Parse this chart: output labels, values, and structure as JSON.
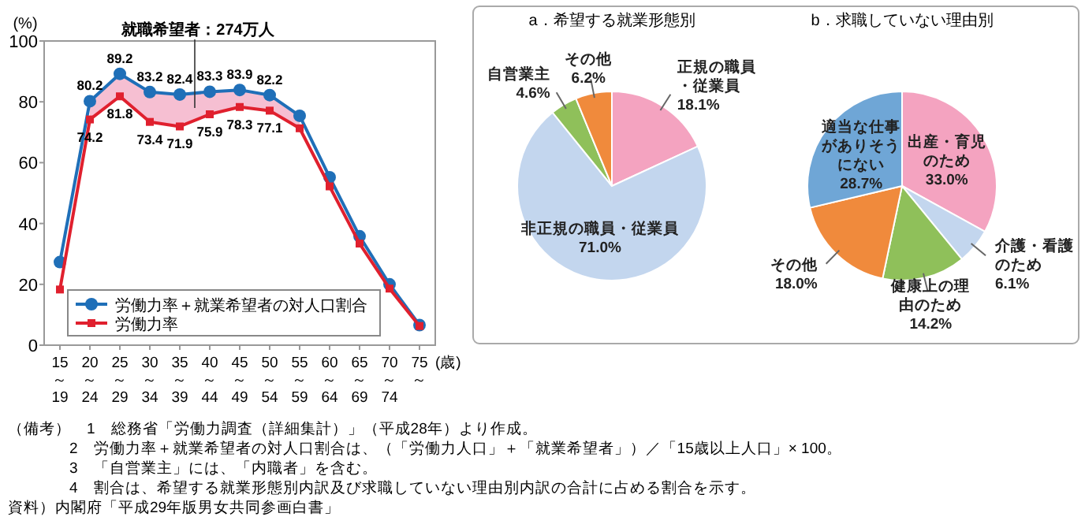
{
  "chart_data": [
    {
      "type": "line",
      "ylabel": "(%)",
      "xlabel": "(歳)",
      "categories": [
        "15～19",
        "20～24",
        "25～29",
        "30～34",
        "35～39",
        "40～44",
        "45～49",
        "50～54",
        "55～59",
        "60～64",
        "65～69",
        "70～74",
        "75～"
      ],
      "ylim": [
        0,
        100
      ],
      "yticks": [
        0,
        20,
        40,
        60,
        80,
        100
      ],
      "grid": false,
      "legend": "bottom left",
      "series": [
        {
          "name": "労働力率＋就業希望者の対人口割合",
          "color": "#1f6fb8",
          "marker": "circle",
          "values": [
            27.3,
            80.2,
            89.2,
            83.2,
            82.4,
            83.3,
            83.9,
            82.2,
            75.4,
            55.2,
            35.8,
            20.0,
            6.6
          ],
          "value_labels": [
            null,
            "80.2",
            "89.2",
            "83.2",
            "82.4",
            "83.3",
            "83.9",
            "82.2",
            null,
            null,
            null,
            null,
            null
          ],
          "lower": [
            null,
            74.2,
            81.8,
            73.4,
            71.9,
            75.9,
            78.3,
            77.1,
            71.3,
            null,
            null,
            null,
            null
          ],
          "upper": [
            null,
            80.2,
            89.2,
            83.2,
            82.4,
            83.3,
            83.9,
            82.2,
            75.4,
            null,
            null,
            null,
            null
          ]
        },
        {
          "name": "労働力率",
          "color": "#e0202e",
          "marker": "square",
          "values": [
            18.3,
            74.2,
            81.8,
            73.4,
            71.9,
            75.9,
            78.3,
            77.1,
            71.3,
            52.2,
            33.4,
            18.6,
            6.3
          ],
          "value_labels": [
            null,
            "74.2",
            "81.8",
            "73.4",
            "71.9",
            "75.9",
            "78.3",
            "77.1",
            null,
            null,
            null,
            null,
            null
          ]
        }
      ],
      "annotations": [
        "就職希望者：274万人",
        "（備考）　1　総務省「労働力調査（詳細集計）」（平成28年）より作成。",
        "2　労働力率＋就業希望者の対人口割合は、（「労働力人口」＋「就業希望者」）／「15歳以上人口」× 100。",
        "3　「自営業主」には、「内職者」を含む。",
        "4　割合は、希望する就業形態別内訳及び求職していない理由別内訳の合計に占める割合を示す。",
        "資料）内閣府「平成29年版男女共同参画白書」"
      ]
    },
    {
      "type": "pie",
      "title": "a．希望する就業形態別",
      "categories": [
        "正規の職員・従業員",
        "非正規の職員・従業員",
        "自営業主",
        "その他"
      ],
      "values": [
        18.1,
        71.0,
        4.6,
        6.2
      ],
      "value_labels": [
        "18.1%",
        "71.0%",
        "4.6%",
        "6.2%"
      ],
      "colors": [
        "#f4a3c0",
        "#c3d6ee",
        "#8fc05a",
        "#f08a3c"
      ]
    },
    {
      "type": "pie",
      "title": "b．求職していない理由別",
      "categories": [
        "出産・育児のため",
        "介護・看護のため",
        "健康上の理由のため",
        "その他",
        "適当な仕事がありそうにない"
      ],
      "values": [
        33.0,
        6.1,
        14.2,
        18.0,
        28.7
      ],
      "value_labels": [
        "33.0%",
        "6.1%",
        "14.2%",
        "18.0%",
        "28.7%"
      ],
      "colors": [
        "#f4a3c0",
        "#c3d6ee",
        "#8fc05a",
        "#f08a3c",
        "#6fa6d6"
      ]
    }
  ]
}
